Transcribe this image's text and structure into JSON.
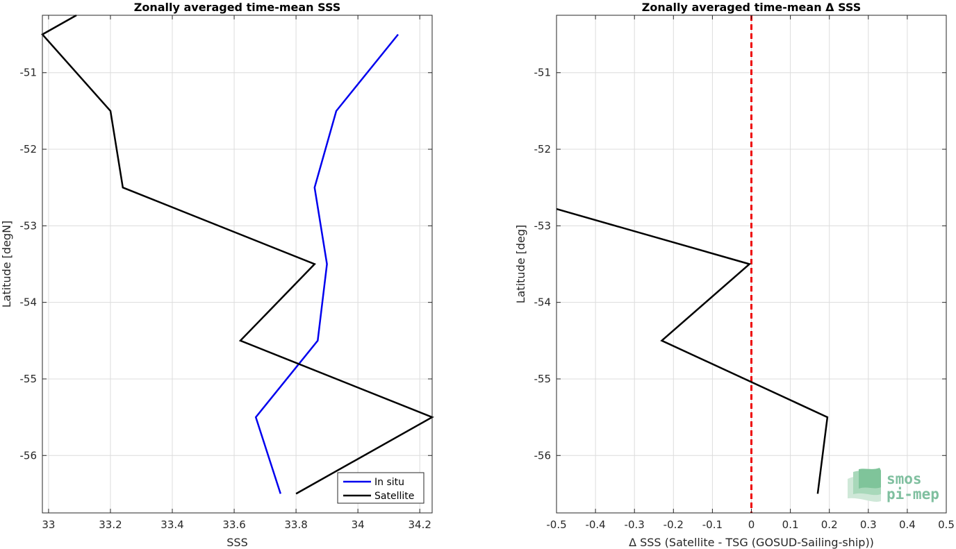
{
  "chart_data": [
    {
      "type": "line",
      "title": "Zonally averaged time-mean SSS",
      "xlabel": "SSS",
      "ylabel": "Latitude [degN]",
      "xlim": [
        32.98,
        34.24
      ],
      "ylim": [
        -56.75,
        -50.25
      ],
      "xticks": [
        33,
        33.2,
        33.4,
        33.6,
        33.8,
        34,
        34.2
      ],
      "xtick_labels": [
        "33",
        "33.2",
        "33.4",
        "33.6",
        "33.8",
        "34",
        "34.2"
      ],
      "yticks": [
        -51,
        -52,
        -53,
        -54,
        -55,
        -56
      ],
      "ytick_labels": [
        "-51",
        "-52",
        "-53",
        "-54",
        "-55",
        "-56"
      ],
      "grid": true,
      "legend_position": "bottom-right",
      "series": [
        {
          "name": "In situ",
          "color": "#0000ee",
          "x": [
            34.13,
            33.93,
            33.86,
            33.9,
            33.87,
            33.67,
            33.75
          ],
          "y": [
            -50.5,
            -51.5,
            -52.5,
            -53.5,
            -54.5,
            -55.5,
            -56.5
          ]
        },
        {
          "name": "Satellite",
          "color": "#000000",
          "x": [
            33.09,
            32.98,
            33.2,
            33.24,
            33.86,
            33.62,
            34.24,
            33.8
          ],
          "y": [
            -50.25,
            -50.5,
            -51.5,
            -52.5,
            -53.5,
            -54.5,
            -55.5,
            -56.5
          ]
        }
      ]
    },
    {
      "type": "line",
      "title": "Zonally averaged time-mean Δ SSS",
      "xlabel": "Δ SSS (Satellite - TSG (GOSUD-Sailing-ship))",
      "ylabel": "Latitude [deg]",
      "xlim": [
        -0.5,
        0.5
      ],
      "ylim": [
        -56.75,
        -50.25
      ],
      "xticks": [
        -0.5,
        -0.4,
        -0.3,
        -0.2,
        -0.1,
        0,
        0.1,
        0.2,
        0.3,
        0.4,
        0.5
      ],
      "xtick_labels": [
        "-0.5",
        "-0.4",
        "-0.3",
        "-0.2",
        "-0.1",
        "0",
        "0.1",
        "0.2",
        "0.3",
        "0.4",
        "0.5"
      ],
      "yticks": [
        -51,
        -52,
        -53,
        -54,
        -55,
        -56
      ],
      "ytick_labels": [
        "-51",
        "-52",
        "-53",
        "-54",
        "-55",
        "-56"
      ],
      "grid": true,
      "zero_line": {
        "x": 0,
        "color": "#ee0000",
        "style": "dashed"
      },
      "series": [
        {
          "color": "#000000",
          "x": [
            -0.5,
            -0.005,
            -0.23,
            0.195,
            0.17
          ],
          "y": [
            -52.78,
            -53.5,
            -54.5,
            -55.5,
            -56.5
          ]
        }
      ]
    }
  ],
  "logo": {
    "line1": "smos",
    "line2": "pi-mep"
  }
}
